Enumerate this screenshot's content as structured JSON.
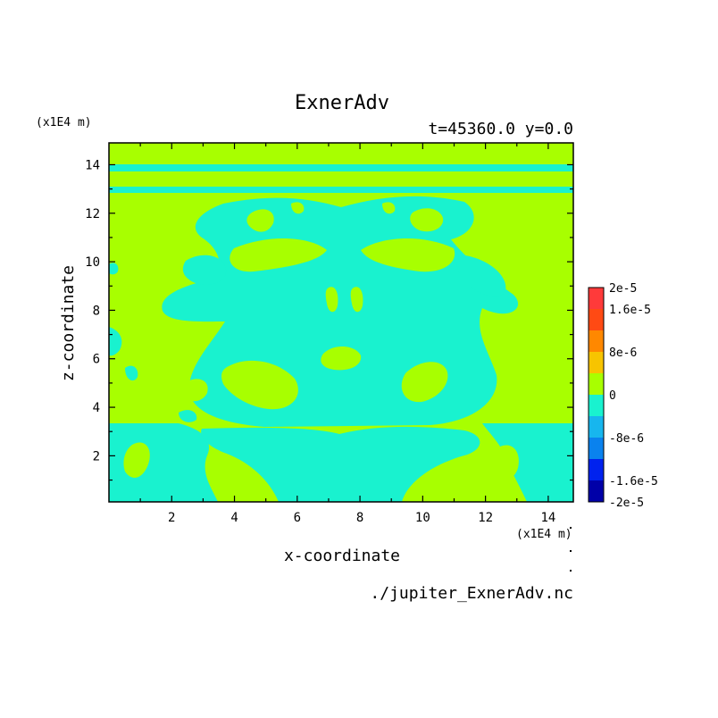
{
  "chart_data": {
    "type": "heatmap",
    "title": "ExnerAdv",
    "subtitle": "t=45360.0 y=0.0",
    "xlabel": "x-coordinate",
    "ylabel": "z-coordinate",
    "x_unit": "(x1E4 m)",
    "y_unit": "(x1E4 m)",
    "xlim": [
      0,
      14.8
    ],
    "ylim": [
      0.1,
      14.9
    ],
    "x_ticks": [
      2,
      4,
      6,
      8,
      10,
      12,
      14
    ],
    "y_ticks": [
      2,
      4,
      6,
      8,
      10,
      12,
      14
    ],
    "source": "./jupiter_ExnerAdv.nc",
    "colorbar": {
      "levels": [
        -2e-05,
        -1.6e-05,
        -1.2e-05,
        -8e-06,
        -4e-06,
        0,
        4e-06,
        8e-06,
        1.2e-05,
        1.6e-05,
        2e-05
      ],
      "colors": [
        "#0000a8",
        "#0022ee",
        "#0a82ee",
        "#17b6ee",
        "#19f2cf",
        "#a8ff00",
        "#f7c400",
        "#ff8800",
        "#ff4a14",
        "#ff3a3a"
      ],
      "labels": [
        "2e-5",
        "1.6e-5",
        "8e-6",
        "0",
        "-8e-6",
        "-1.6e-5",
        "-2e-5"
      ],
      "label_values": [
        2e-05,
        1.6e-05,
        8e-06,
        0,
        -8e-06,
        -1.6e-05,
        -2e-05
      ]
    },
    "fill_levels": {
      "background": "0 to 4e-6",
      "negative": "-4e-6 to 0"
    }
  }
}
